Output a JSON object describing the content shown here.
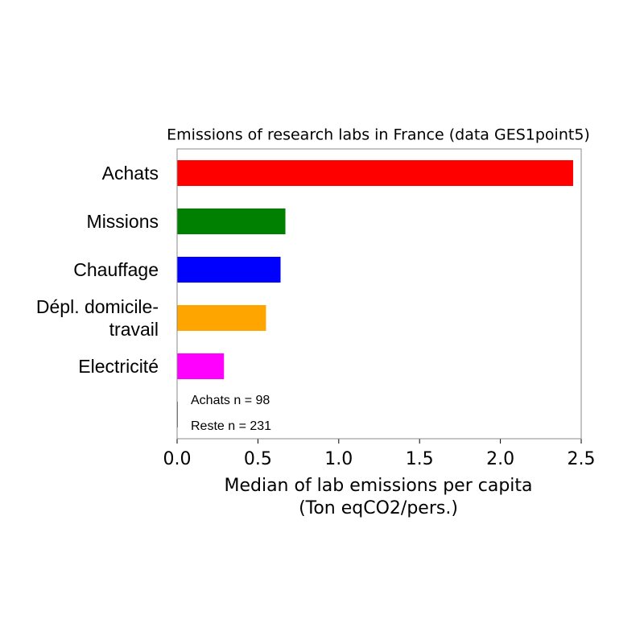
{
  "chart_data": {
    "type": "barh",
    "title": "Emissions of research labs in France (data GES1point5)",
    "xlabel": [
      "Median of lab emissions per capita",
      "(Ton eqCO2/pers.)"
    ],
    "categories": [
      "Achats",
      "Missions",
      "Chauffage",
      "Dépl. domicile-\ntravail",
      "Electricité",
      null
    ],
    "values": [
      2.45,
      0.67,
      0.64,
      0.55,
      0.29,
      0
    ],
    "colors": [
      "#ff0000",
      "#008000",
      "#0000ff",
      "#ffa500",
      "#ff00ff",
      "#000000"
    ],
    "xlim": [
      0,
      2.5
    ],
    "xticks": [
      {
        "value": 0,
        "label": "0.0"
      },
      {
        "value": 0.5,
        "label": "0.5"
      },
      {
        "value": 1,
        "label": "1.0"
      },
      {
        "value": 1.5,
        "label": "1.5"
      },
      {
        "value": 2,
        "label": "2.0"
      },
      {
        "value": 2.5,
        "label": "2.5"
      }
    ],
    "annotations": [
      "Achats n = 98",
      "Reste n = 231"
    ]
  }
}
